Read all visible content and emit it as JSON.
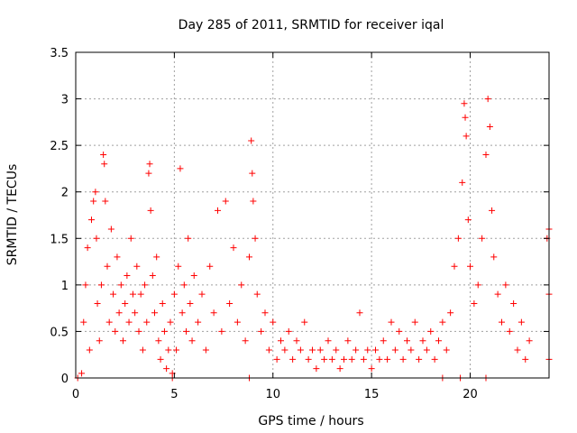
{
  "chart_data": {
    "type": "scatter",
    "title": "Day 285 of 2011, SRMTID for receiver iqal",
    "xlabel": "GPS time / hours",
    "ylabel": "SRMTID / TECUs",
    "xlim": [
      0,
      24
    ],
    "ylim": [
      0,
      3.5
    ],
    "x_ticks": [
      0,
      5,
      10,
      15,
      20
    ],
    "x_tick_labels": [
      "0",
      "5",
      "10",
      "15",
      "20"
    ],
    "y_ticks": [
      0,
      0.5,
      1,
      1.5,
      2,
      2.5,
      3,
      3.5
    ],
    "y_tick_labels": [
      "0",
      "0.5",
      "1",
      "1.5",
      "2",
      "2.5",
      "3",
      "3.5"
    ],
    "grid": true,
    "marker": "plus",
    "color": "#ff0000",
    "series": [
      {
        "name": "SRMTID",
        "points": [
          [
            0.3,
            0.05
          ],
          [
            0.4,
            0.6
          ],
          [
            0.5,
            1.0
          ],
          [
            0.6,
            1.4
          ],
          [
            0.7,
            0.3
          ],
          [
            0.8,
            1.7
          ],
          [
            0.9,
            1.9
          ],
          [
            1.0,
            2.0
          ],
          [
            1.05,
            1.5
          ],
          [
            1.1,
            0.8
          ],
          [
            1.2,
            0.4
          ],
          [
            1.3,
            1.0
          ],
          [
            1.4,
            2.4
          ],
          [
            1.45,
            2.3
          ],
          [
            1.5,
            1.9
          ],
          [
            1.6,
            1.2
          ],
          [
            1.7,
            0.6
          ],
          [
            1.8,
            1.6
          ],
          [
            1.9,
            0.9
          ],
          [
            2.0,
            0.5
          ],
          [
            2.1,
            1.3
          ],
          [
            2.2,
            0.7
          ],
          [
            2.3,
            1.0
          ],
          [
            2.4,
            0.4
          ],
          [
            2.5,
            0.8
          ],
          [
            2.6,
            1.1
          ],
          [
            2.7,
            0.6
          ],
          [
            2.8,
            1.5
          ],
          [
            2.9,
            0.9
          ],
          [
            3.0,
            0.7
          ],
          [
            3.1,
            1.2
          ],
          [
            3.2,
            0.5
          ],
          [
            3.3,
            0.9
          ],
          [
            3.4,
            0.3
          ],
          [
            3.5,
            1.0
          ],
          [
            3.6,
            0.6
          ],
          [
            3.7,
            2.2
          ],
          [
            3.75,
            2.3
          ],
          [
            3.8,
            1.8
          ],
          [
            3.9,
            1.1
          ],
          [
            4.0,
            0.7
          ],
          [
            4.1,
            1.3
          ],
          [
            4.2,
            0.4
          ],
          [
            4.3,
            0.2
          ],
          [
            4.4,
            0.8
          ],
          [
            4.5,
            0.5
          ],
          [
            4.6,
            0.1
          ],
          [
            4.7,
            0.3
          ],
          [
            4.8,
            0.6
          ],
          [
            4.9,
            0.05
          ],
          [
            5.0,
            0.9
          ],
          [
            5.1,
            0.3
          ],
          [
            5.2,
            1.2
          ],
          [
            5.3,
            2.25
          ],
          [
            5.4,
            0.7
          ],
          [
            5.5,
            1.0
          ],
          [
            5.6,
            0.5
          ],
          [
            5.7,
            1.5
          ],
          [
            5.8,
            0.8
          ],
          [
            5.9,
            0.4
          ],
          [
            6.0,
            1.1
          ],
          [
            6.2,
            0.6
          ],
          [
            6.4,
            0.9
          ],
          [
            6.6,
            0.3
          ],
          [
            6.8,
            1.2
          ],
          [
            7.0,
            0.7
          ],
          [
            7.2,
            1.8
          ],
          [
            7.4,
            0.5
          ],
          [
            7.6,
            1.9
          ],
          [
            7.8,
            0.8
          ],
          [
            8.0,
            1.4
          ],
          [
            8.2,
            0.6
          ],
          [
            8.4,
            1.0
          ],
          [
            8.6,
            0.4
          ],
          [
            8.8,
            1.3
          ],
          [
            8.9,
            2.55
          ],
          [
            8.95,
            2.2
          ],
          [
            9.0,
            1.9
          ],
          [
            9.1,
            1.5
          ],
          [
            9.2,
            0.9
          ],
          [
            9.4,
            0.5
          ],
          [
            9.6,
            0.7
          ],
          [
            9.8,
            0.3
          ],
          [
            10.0,
            0.6
          ],
          [
            10.2,
            0.2
          ],
          [
            10.4,
            0.4
          ],
          [
            10.6,
            0.3
          ],
          [
            10.8,
            0.5
          ],
          [
            11.0,
            0.2
          ],
          [
            11.2,
            0.4
          ],
          [
            11.4,
            0.3
          ],
          [
            11.6,
            0.6
          ],
          [
            11.8,
            0.2
          ],
          [
            12.0,
            0.3
          ],
          [
            12.2,
            0.1
          ],
          [
            12.4,
            0.3
          ],
          [
            12.6,
            0.2
          ],
          [
            12.8,
            0.4
          ],
          [
            13.0,
            0.2
          ],
          [
            13.2,
            0.3
          ],
          [
            13.4,
            0.1
          ],
          [
            13.6,
            0.2
          ],
          [
            13.8,
            0.4
          ],
          [
            14.0,
            0.2
          ],
          [
            14.2,
            0.3
          ],
          [
            14.4,
            0.7
          ],
          [
            14.6,
            0.2
          ],
          [
            14.8,
            0.3
          ],
          [
            15.0,
            0.1
          ],
          [
            15.2,
            0.3
          ],
          [
            15.4,
            0.2
          ],
          [
            15.6,
            0.4
          ],
          [
            15.8,
            0.2
          ],
          [
            16.0,
            0.6
          ],
          [
            16.2,
            0.3
          ],
          [
            16.4,
            0.5
          ],
          [
            16.6,
            0.2
          ],
          [
            16.8,
            0.4
          ],
          [
            17.0,
            0.3
          ],
          [
            17.2,
            0.6
          ],
          [
            17.4,
            0.2
          ],
          [
            17.6,
            0.4
          ],
          [
            17.8,
            0.3
          ],
          [
            18.0,
            0.5
          ],
          [
            18.2,
            0.2
          ],
          [
            18.4,
            0.4
          ],
          [
            18.6,
            0.6
          ],
          [
            18.8,
            0.3
          ],
          [
            19.0,
            0.7
          ],
          [
            19.2,
            1.2
          ],
          [
            19.4,
            1.5
          ],
          [
            19.6,
            2.1
          ],
          [
            19.7,
            2.95
          ],
          [
            19.75,
            2.8
          ],
          [
            19.8,
            2.6
          ],
          [
            19.9,
            1.7
          ],
          [
            20.0,
            1.2
          ],
          [
            20.2,
            0.8
          ],
          [
            20.4,
            1.0
          ],
          [
            20.6,
            1.5
          ],
          [
            20.8,
            2.4
          ],
          [
            20.9,
            3.0
          ],
          [
            21.0,
            2.7
          ],
          [
            21.1,
            1.8
          ],
          [
            21.2,
            1.3
          ],
          [
            21.4,
            0.9
          ],
          [
            21.6,
            0.6
          ],
          [
            21.8,
            1.0
          ],
          [
            22.0,
            0.5
          ],
          [
            22.2,
            0.8
          ],
          [
            22.4,
            0.3
          ],
          [
            22.6,
            0.6
          ],
          [
            22.8,
            0.2
          ],
          [
            23.0,
            0.4
          ],
          [
            23.9,
            1.5
          ],
          [
            24.0,
            1.6
          ],
          [
            24.0,
            0.9
          ],
          [
            24.0,
            0.2
          ],
          [
            0.1,
            0.0
          ],
          [
            4.9,
            0.0
          ],
          [
            8.8,
            0.0
          ],
          [
            18.6,
            0.0
          ],
          [
            19.5,
            0.0
          ],
          [
            20.8,
            0.0
          ]
        ]
      }
    ]
  }
}
